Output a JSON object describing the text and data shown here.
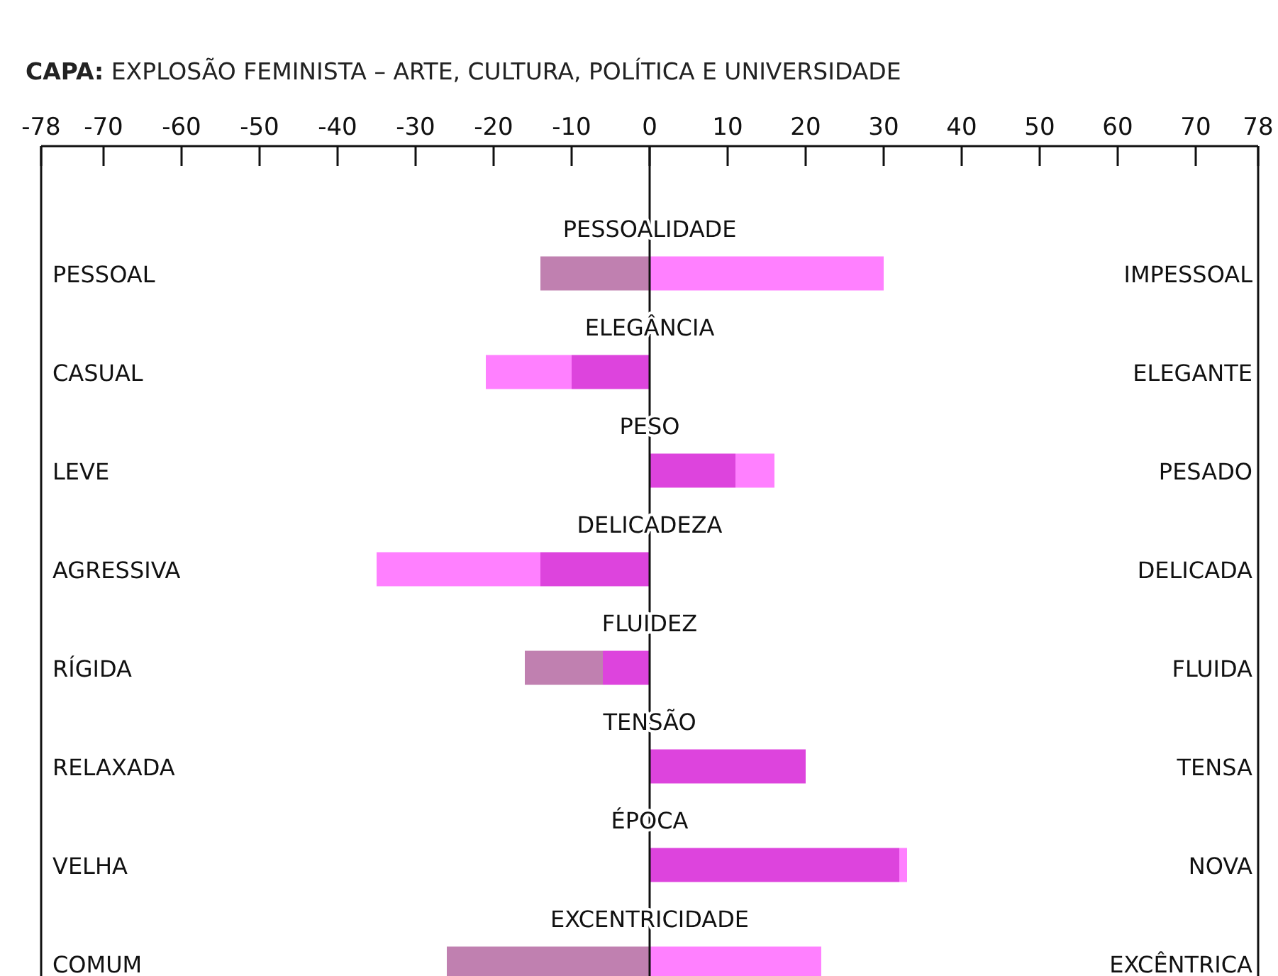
{
  "chart_data": {
    "type": "bar",
    "orientation": "horizontal",
    "stacked": true,
    "subtitle": "CAPA: EXPLOSÃO FEMINISTA – ARTE, CULTURA, POLÍTICA E UNIVERSIDADE",
    "categories": [
      "PESSOALIDADE",
      "ELEGÂNCIA",
      "PESO",
      "DELICADEZA",
      "FLUIDEZ",
      "TENSÃO",
      "ÉPOCA",
      "EXCENTRICIDADE"
    ],
    "series": [
      {
        "color": "#dd44dd",
        "values": [
          null,
          -10,
          11,
          -14,
          -6,
          20,
          32,
          null
        ]
      },
      {
        "color": "#c080b0",
        "values": [
          -14,
          null,
          null,
          null,
          -10,
          null,
          null,
          -26
        ]
      },
      {
        "color": "#ff80ff",
        "values": [
          30,
          -11,
          5,
          -21,
          null,
          null,
          1,
          22
        ]
      }
    ],
    "xlim": [
      -78,
      78
    ],
    "xticks": [
      -78,
      -70,
      -60,
      -50,
      -40,
      -30,
      -20,
      -10,
      0,
      10,
      20,
      30,
      40,
      50,
      60,
      70,
      78
    ],
    "annotations": [
      "PESSOAL",
      "IMPESSOAL",
      "CASUAL",
      "ELEGANTE",
      "LEVE",
      "PESADO",
      "AGRESSIVA",
      "DELICADA",
      "RÍGIDA",
      "FLUIDA",
      "RELAXADA",
      "TENSA",
      "VELHA",
      "NOVA",
      "COMUM",
      "EXCÊNTRICA"
    ]
  }
}
